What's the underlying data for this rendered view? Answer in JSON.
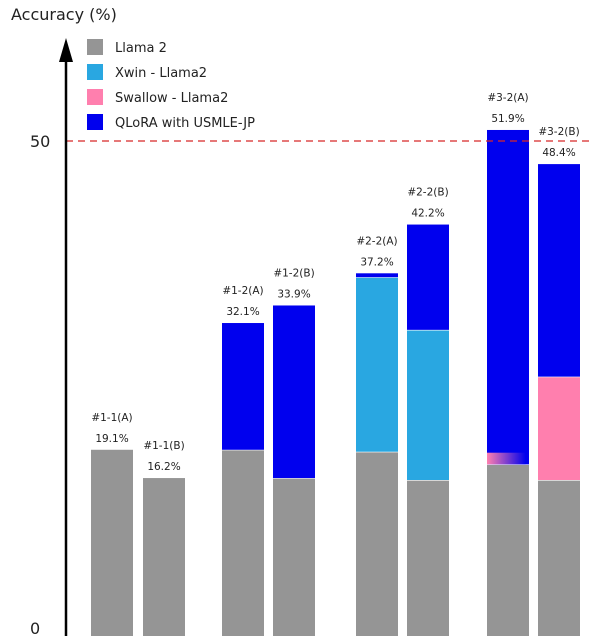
{
  "chart_data": {
    "type": "bar",
    "stacked": true,
    "ylabel": "Accuracy (%)",
    "ylim": [
      0,
      51.9
    ],
    "yticks": [
      0,
      50
    ],
    "reference_line": {
      "value": 50,
      "style": "dashed",
      "color": "#d62728"
    },
    "grid": false,
    "legend_position": "top-left",
    "series": [
      {
        "name": "Llama 2",
        "color": "#959595"
      },
      {
        "name": "Xwin - Llama2",
        "color": "#29a7e1"
      },
      {
        "name": "Swallow - Llama2",
        "color": "#ff7fae"
      },
      {
        "name": "QLoRA with USMLE-JP",
        "color": "#0000ee"
      }
    ],
    "bars": [
      {
        "label": "#1-1(A)",
        "total_label": "19.1%",
        "group": 0,
        "segments": [
          {
            "series": 0,
            "value": 19.1
          }
        ]
      },
      {
        "label": "#1-1(B)",
        "total_label": "16.2%",
        "group": 0,
        "segments": [
          {
            "series": 0,
            "value": 16.2
          }
        ]
      },
      {
        "label": "#1-2(A)",
        "total_label": "32.1%",
        "group": 1,
        "segments": [
          {
            "series": 0,
            "value": 19.1
          },
          {
            "series": 3,
            "value": 13.0
          }
        ]
      },
      {
        "label": "#1-2(B)",
        "total_label": "33.9%",
        "group": 1,
        "segments": [
          {
            "series": 0,
            "value": 16.2
          },
          {
            "series": 3,
            "value": 17.7
          }
        ]
      },
      {
        "label": "#2-2(A)",
        "total_label": "37.2%",
        "group": 2,
        "segments": [
          {
            "series": 0,
            "value": 18.9
          },
          {
            "series": 1,
            "value": 17.9
          },
          {
            "series": 3,
            "value": 0.4
          }
        ]
      },
      {
        "label": "#2-2(B)",
        "total_label": "42.2%",
        "group": 2,
        "segments": [
          {
            "series": 0,
            "value": 16.0
          },
          {
            "series": 1,
            "value": 15.4
          },
          {
            "series": 3,
            "value": 10.8
          }
        ]
      },
      {
        "label": "#3-2(A)",
        "total_label": "51.9%",
        "group": 3,
        "segments": [
          {
            "series": 0,
            "value": 17.6
          },
          {
            "series": 3,
            "value": 34.3
          }
        ],
        "inset": {
          "series": 2,
          "value": 1.2
        }
      },
      {
        "label": "#3-2(B)",
        "total_label": "48.4%",
        "group": 3,
        "segments": [
          {
            "series": 0,
            "value": 16.0
          },
          {
            "series": 2,
            "value": 10.6
          },
          {
            "series": 3,
            "value": 21.8
          }
        ]
      }
    ]
  }
}
